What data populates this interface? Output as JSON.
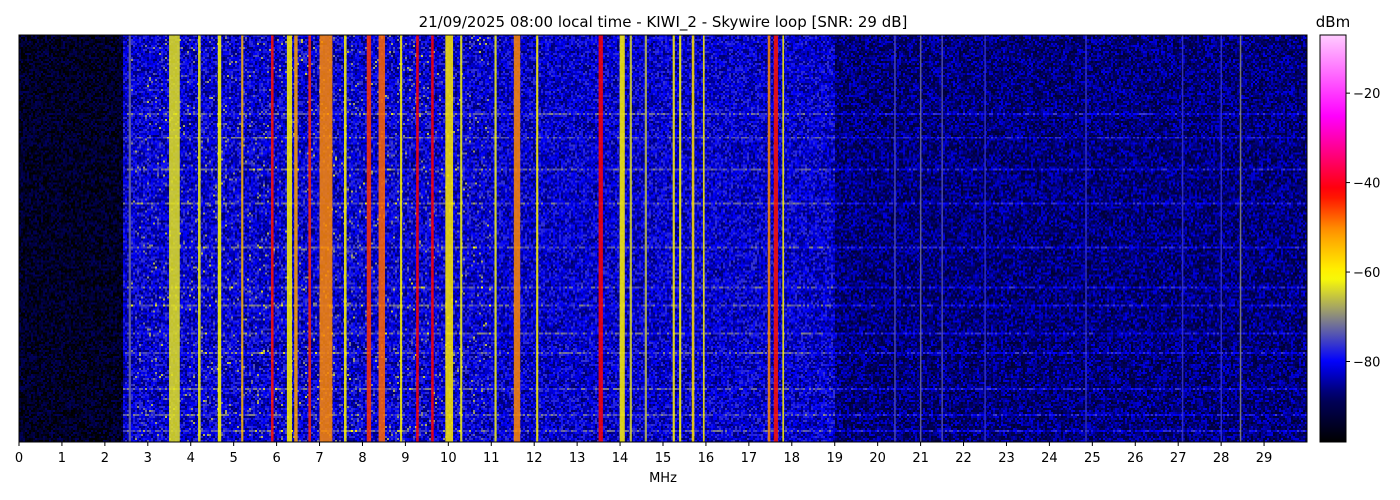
{
  "chart_data": {
    "type": "heatmap",
    "title": "21/09/2025 08:00 local time - KIWI_2 - Skywire loop [SNR: 29 dB]",
    "xlabel": "MHz",
    "ylabel": "",
    "xlim": [
      0,
      30
    ],
    "x_ticks": [
      0,
      1,
      2,
      3,
      4,
      5,
      6,
      7,
      8,
      9,
      10,
      11,
      12,
      13,
      14,
      15,
      16,
      17,
      18,
      19,
      20,
      21,
      22,
      23,
      24,
      25,
      26,
      27,
      28,
      29
    ],
    "colorbar": {
      "label": "dBm",
      "range": [
        -98,
        -7
      ],
      "ticks": [
        -20,
        -40,
        -60,
        -80
      ],
      "colormap": [
        {
          "dbm": -98,
          "color": "#000000"
        },
        {
          "dbm": -88,
          "color": "#000060"
        },
        {
          "dbm": -80,
          "color": "#0000ff"
        },
        {
          "dbm": -70,
          "color": "#8a8a80"
        },
        {
          "dbm": -61,
          "color": "#ffff00"
        },
        {
          "dbm": -51,
          "color": "#ff9900"
        },
        {
          "dbm": -42,
          "color": "#ff0000"
        },
        {
          "dbm": -25,
          "color": "#ff00ff"
        },
        {
          "dbm": -7,
          "color": "#ffccff"
        }
      ]
    },
    "noise_floor": [
      {
        "from_mhz": 0,
        "to_mhz": 2.4,
        "dbm": -94
      },
      {
        "from_mhz": 2.4,
        "to_mhz": 19,
        "dbm": -82
      },
      {
        "from_mhz": 19,
        "to_mhz": 30,
        "dbm": -87
      }
    ],
    "signals": [
      {
        "mhz": 2.58,
        "width_mhz": 0.05,
        "dbm": -72
      },
      {
        "mhz": 3.62,
        "width_mhz": 0.25,
        "dbm": -63
      },
      {
        "mhz": 4.2,
        "width_mhz": 0.06,
        "dbm": -62
      },
      {
        "mhz": 4.67,
        "width_mhz": 0.08,
        "dbm": -61
      },
      {
        "mhz": 5.2,
        "width_mhz": 0.05,
        "dbm": -54
      },
      {
        "mhz": 5.9,
        "width_mhz": 0.06,
        "dbm": -43
      },
      {
        "mhz": 6.3,
        "width_mhz": 0.12,
        "dbm": -60
      },
      {
        "mhz": 6.45,
        "width_mhz": 0.08,
        "dbm": -52
      },
      {
        "mhz": 6.77,
        "width_mhz": 0.06,
        "dbm": -44
      },
      {
        "mhz": 7.15,
        "width_mhz": 0.3,
        "dbm": -50
      },
      {
        "mhz": 7.6,
        "width_mhz": 0.06,
        "dbm": -60
      },
      {
        "mhz": 8.15,
        "width_mhz": 0.1,
        "dbm": -45
      },
      {
        "mhz": 8.45,
        "width_mhz": 0.15,
        "dbm": -48
      },
      {
        "mhz": 8.9,
        "width_mhz": 0.05,
        "dbm": -60
      },
      {
        "mhz": 9.28,
        "width_mhz": 0.06,
        "dbm": -42
      },
      {
        "mhz": 9.63,
        "width_mhz": 0.06,
        "dbm": -42
      },
      {
        "mhz": 10.02,
        "width_mhz": 0.18,
        "dbm": -59
      },
      {
        "mhz": 10.3,
        "width_mhz": 0.05,
        "dbm": -62
      },
      {
        "mhz": 11.1,
        "width_mhz": 0.05,
        "dbm": -62
      },
      {
        "mhz": 11.6,
        "width_mhz": 0.15,
        "dbm": -50
      },
      {
        "mhz": 12.07,
        "width_mhz": 0.05,
        "dbm": -60
      },
      {
        "mhz": 13.55,
        "width_mhz": 0.1,
        "dbm": -42
      },
      {
        "mhz": 14.05,
        "width_mhz": 0.12,
        "dbm": -60
      },
      {
        "mhz": 14.25,
        "width_mhz": 0.05,
        "dbm": -64
      },
      {
        "mhz": 14.6,
        "width_mhz": 0.05,
        "dbm": -66
      },
      {
        "mhz": 15.25,
        "width_mhz": 0.05,
        "dbm": -60
      },
      {
        "mhz": 15.4,
        "width_mhz": 0.05,
        "dbm": -61
      },
      {
        "mhz": 15.7,
        "width_mhz": 0.06,
        "dbm": -58
      },
      {
        "mhz": 15.95,
        "width_mhz": 0.04,
        "dbm": -60
      },
      {
        "mhz": 17.47,
        "width_mhz": 0.06,
        "dbm": -50
      },
      {
        "mhz": 17.63,
        "width_mhz": 0.1,
        "dbm": -43
      },
      {
        "mhz": 17.8,
        "width_mhz": 0.04,
        "dbm": -60
      },
      {
        "mhz": 20.4,
        "width_mhz": 0.03,
        "dbm": -74
      },
      {
        "mhz": 21.0,
        "width_mhz": 0.03,
        "dbm": -72
      },
      {
        "mhz": 21.5,
        "width_mhz": 0.03,
        "dbm": -74
      },
      {
        "mhz": 22.5,
        "width_mhz": 0.03,
        "dbm": -76
      },
      {
        "mhz": 24.85,
        "width_mhz": 0.03,
        "dbm": -76
      },
      {
        "mhz": 27.1,
        "width_mhz": 0.03,
        "dbm": -76
      },
      {
        "mhz": 28.0,
        "width_mhz": 0.03,
        "dbm": -76
      },
      {
        "mhz": 28.45,
        "width_mhz": 0.03,
        "dbm": -70
      }
    ]
  }
}
